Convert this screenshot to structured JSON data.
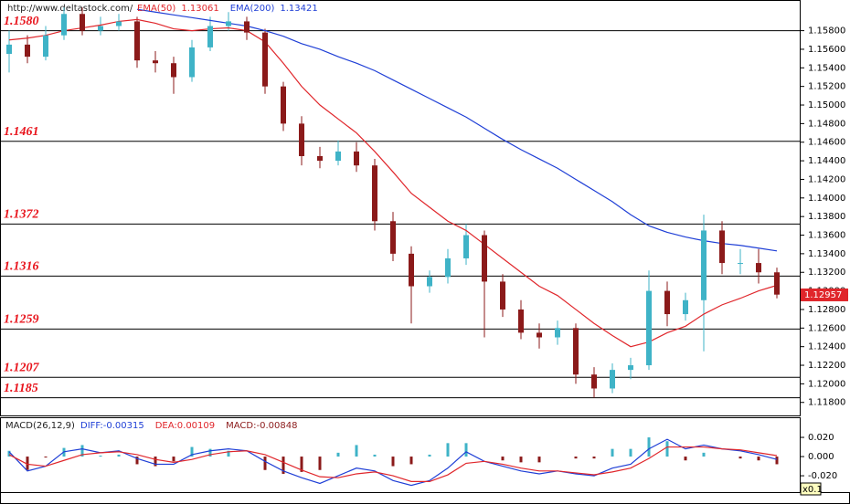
{
  "chart_data": [
    {
      "type": "candlestick",
      "title": "http://www.deltastock.com/",
      "open": [
        1.1555,
        1.1565,
        1.1552,
        1.1575,
        1.1598,
        1.158,
        1.1585,
        1.159,
        1.1548,
        1.1545,
        1.153,
        1.1562,
        1.1585,
        1.159,
        1.1578,
        1.152,
        1.148,
        1.1445,
        1.144,
        1.145,
        1.1435,
        1.1375,
        1.134,
        1.1305,
        1.1315,
        1.1335,
        1.136,
        1.131,
        1.128,
        1.1255,
        1.125,
        1.126,
        1.121,
        1.1195,
        1.1215,
        1.122,
        1.13,
        1.1275,
        1.129,
        1.1365,
        1.133,
        1.133,
        1.132
      ],
      "high": [
        1.158,
        1.1575,
        1.1585,
        1.1605,
        1.1605,
        1.1595,
        1.1598,
        1.1595,
        1.1558,
        1.1552,
        1.157,
        1.1595,
        1.16,
        1.1595,
        1.1582,
        1.1525,
        1.1488,
        1.1455,
        1.1462,
        1.146,
        1.1442,
        1.1385,
        1.1348,
        1.1322,
        1.1345,
        1.1372,
        1.1365,
        1.1318,
        1.129,
        1.1265,
        1.1268,
        1.1265,
        1.1218,
        1.1222,
        1.1228,
        1.1322,
        1.131,
        1.1298,
        1.1382,
        1.1375,
        1.1345,
        1.1345,
        1.1325
      ],
      "low": [
        1.1535,
        1.1545,
        1.1548,
        1.157,
        1.1575,
        1.1575,
        1.158,
        1.154,
        1.1535,
        1.1512,
        1.1525,
        1.1558,
        1.158,
        1.157,
        1.1512,
        1.1472,
        1.1435,
        1.1432,
        1.1435,
        1.1428,
        1.1365,
        1.1332,
        1.1265,
        1.1298,
        1.1308,
        1.1328,
        1.125,
        1.1272,
        1.1248,
        1.1238,
        1.1242,
        1.12,
        1.1185,
        1.119,
        1.1205,
        1.1215,
        1.1262,
        1.1268,
        1.1235,
        1.1318,
        1.1318,
        1.1308,
        1.1292
      ],
      "close": [
        1.1565,
        1.1552,
        1.1575,
        1.1598,
        1.158,
        1.1585,
        1.159,
        1.1548,
        1.1545,
        1.153,
        1.1562,
        1.1585,
        1.159,
        1.1578,
        1.152,
        1.148,
        1.1445,
        1.144,
        1.145,
        1.1435,
        1.1375,
        1.134,
        1.1305,
        1.1315,
        1.1335,
        1.136,
        1.131,
        1.128,
        1.1255,
        1.125,
        1.126,
        1.121,
        1.1195,
        1.1215,
        1.122,
        1.13,
        1.1275,
        1.129,
        1.1365,
        1.133,
        1.133,
        1.132,
        1.1296
      ],
      "up_color": "#3fb3c7",
      "down_color": "#8b1a1a",
      "ylim": [
        1.1166,
        1.1613
      ],
      "yticks": [
        {
          "value": 1.118,
          "label": "1.11800"
        },
        {
          "value": 1.12,
          "label": "1.12000"
        },
        {
          "value": 1.122,
          "label": "1.12200"
        },
        {
          "value": 1.124,
          "label": "1.12400"
        },
        {
          "value": 1.126,
          "label": "1.12600"
        },
        {
          "value": 1.128,
          "label": "1.12800"
        },
        {
          "value": 1.13,
          "label": "1.13000"
        },
        {
          "value": 1.132,
          "label": "1.13200"
        },
        {
          "value": 1.134,
          "label": "1.13400"
        },
        {
          "value": 1.136,
          "label": "1.13600"
        },
        {
          "value": 1.138,
          "label": "1.13800"
        },
        {
          "value": 1.14,
          "label": "1.14000"
        },
        {
          "value": 1.142,
          "label": "1.14200"
        },
        {
          "value": 1.144,
          "label": "1.14400"
        },
        {
          "value": 1.146,
          "label": "1.14600"
        },
        {
          "value": 1.148,
          "label": "1.14800"
        },
        {
          "value": 1.15,
          "label": "1.15000"
        },
        {
          "value": 1.152,
          "label": "1.15200"
        },
        {
          "value": 1.154,
          "label": "1.15400"
        },
        {
          "value": 1.156,
          "label": "1.15600"
        },
        {
          "value": 1.158,
          "label": "1.15800"
        }
      ],
      "levels": {
        "values": [
          1.158,
          1.1461,
          1.1372,
          1.1316,
          1.1259,
          1.1207,
          1.1185
        ],
        "value_labels": [
          "1.1580",
          "1.1461",
          "1.1372",
          "1.1316",
          "1.1259",
          "1.1207",
          "1.1185"
        ],
        "color": "#e8141c"
      },
      "last_price": 1.12957,
      "series": [
        {
          "name": "EMA(50)",
          "color": "#e0262b",
          "current": 1.13061,
          "values": [
            1.157,
            1.1572,
            1.1575,
            1.158,
            1.1583,
            1.1586,
            1.159,
            1.1592,
            1.1588,
            1.1582,
            1.158,
            1.1582,
            1.1583,
            1.158,
            1.1568,
            1.1545,
            1.152,
            1.15,
            1.1485,
            1.147,
            1.145,
            1.1428,
            1.1405,
            1.139,
            1.1375,
            1.1365,
            1.135,
            1.1335,
            1.132,
            1.1305,
            1.1295,
            1.128,
            1.1265,
            1.1252,
            1.124,
            1.1245,
            1.1255,
            1.1262,
            1.1275,
            1.1285,
            1.1292,
            1.13,
            1.1306
          ]
        },
        {
          "name": "EMA(200)",
          "color": "#1f3fd6",
          "current": 1.13421,
          "values": [
            null,
            null,
            null,
            null,
            null,
            null,
            null,
            1.1603,
            1.16,
            1.1597,
            1.1594,
            1.1591,
            1.1588,
            1.1585,
            1.158,
            1.1574,
            1.1566,
            1.156,
            1.1552,
            1.1545,
            1.1537,
            1.1527,
            1.1517,
            1.1507,
            1.1497,
            1.1487,
            1.1475,
            1.1463,
            1.1452,
            1.1442,
            1.1432,
            1.142,
            1.1408,
            1.1396,
            1.1382,
            1.137,
            1.1363,
            1.1358,
            1.1354,
            1.1351,
            1.1349,
            1.1346,
            1.1343
          ]
        }
      ]
    },
    {
      "type": "macd",
      "title": "MACD(26,12,9)",
      "scale_label": "x0.1",
      "ylim": [
        -0.038,
        0.04
      ],
      "yticks": [
        {
          "value": 0.02,
          "label": "0.020"
        },
        {
          "value": 0,
          "label": "0.000"
        },
        {
          "value": -0.02,
          "label": "-0.020"
        }
      ],
      "series": [
        {
          "name": "DIFF:-0.00315",
          "color": "#1f3fd6",
          "kind": "line",
          "values": [
            0.005,
            -0.015,
            -0.01,
            0.005,
            0.008,
            0.004,
            0.006,
            -0.002,
            -0.008,
            -0.008,
            0.002,
            0.006,
            0.008,
            0.006,
            -0.005,
            -0.015,
            -0.022,
            -0.028,
            -0.02,
            -0.012,
            -0.015,
            -0.025,
            -0.03,
            -0.025,
            -0.012,
            0.005,
            -0.005,
            -0.01,
            -0.015,
            -0.018,
            -0.015,
            -0.018,
            -0.02,
            -0.012,
            -0.008,
            0.008,
            0.018,
            0.008,
            0.012,
            0.008,
            0.006,
            0.002,
            -0.003
          ]
        },
        {
          "name": "DEA:0.00109",
          "color": "#e0262b",
          "kind": "line",
          "values": [
            0.002,
            -0.008,
            -0.01,
            -0.004,
            0.002,
            0.004,
            0.005,
            0.002,
            -0.003,
            -0.006,
            -0.003,
            0.002,
            0.005,
            0.006,
            0.002,
            -0.006,
            -0.014,
            -0.021,
            -0.022,
            -0.018,
            -0.016,
            -0.02,
            -0.026,
            -0.026,
            -0.019,
            -0.007,
            -0.005,
            -0.008,
            -0.012,
            -0.015,
            -0.015,
            -0.017,
            -0.019,
            -0.016,
            -0.012,
            -0.002,
            0.01,
            0.01,
            0.01,
            0.008,
            0.007,
            0.004,
            0.001
          ]
        },
        {
          "name": "MACD:-0.00848",
          "color": "#3fb3c7",
          "negative_color": "#8b1a1a",
          "kind": "bar",
          "values": [
            0.006,
            -0.014,
            -0.001,
            0.009,
            0.012,
            0.001,
            0.002,
            -0.008,
            -0.01,
            -0.005,
            0.01,
            0.008,
            0.006,
            0.0,
            -0.014,
            -0.018,
            -0.016,
            -0.014,
            0.004,
            0.012,
            0.002,
            -0.01,
            -0.008,
            0.002,
            0.014,
            0.014,
            0.0,
            -0.004,
            -0.006,
            -0.006,
            0.0,
            -0.002,
            -0.002,
            0.008,
            0.008,
            0.02,
            0.016,
            -0.004,
            0.004,
            0.0,
            -0.002,
            -0.004,
            -0.008
          ]
        }
      ]
    }
  ]
}
